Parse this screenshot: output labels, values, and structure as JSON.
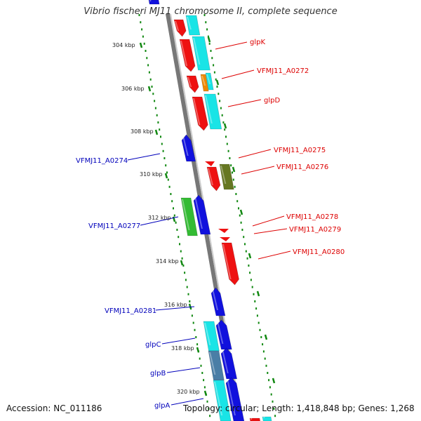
{
  "title": "Vibrio fischeri MJ11 chromosome II, complete sequence",
  "footer": {
    "accession": "Accession: NC_011186",
    "stats": "Topology: circular; Length: 1,418,848 bp; Genes: 1,268"
  },
  "colors": {
    "red": "#ee1111",
    "cyan": "#19e4e6",
    "blue": "#1111dd",
    "green": "#33bb33",
    "olive": "#667722",
    "orange": "#ee8800",
    "steel": "#4a7ea6",
    "backbone": "#777777",
    "tick": "#118811",
    "label_forward": "#dd0000",
    "label_reverse": "#0000bb"
  },
  "ticks": [
    "304 kbp",
    "306 kbp",
    "308 kbp",
    "310 kbp",
    "312 kbp",
    "314 kbp",
    "316 kbp",
    "318 kbp",
    "320 kbp"
  ],
  "gene_labels": [
    {
      "text": "glpK",
      "strand": "forward"
    },
    {
      "text": "VFMJ11_A0272",
      "strand": "forward"
    },
    {
      "text": "glpD",
      "strand": "forward"
    },
    {
      "text": "VFMJ11_A0275",
      "strand": "forward"
    },
    {
      "text": "VFMJ11_A0276",
      "strand": "forward"
    },
    {
      "text": "VFMJ11_A0278",
      "strand": "forward"
    },
    {
      "text": "VFMJ11_A0279",
      "strand": "forward"
    },
    {
      "text": "VFMJ11_A0280",
      "strand": "forward"
    },
    {
      "text": "VFMJ11_A0274",
      "strand": "reverse"
    },
    {
      "text": "VFMJ11_A0277",
      "strand": "reverse"
    },
    {
      "text": "VFMJ11_A0281",
      "strand": "reverse"
    },
    {
      "text": "glpC",
      "strand": "reverse"
    },
    {
      "text": "glpB",
      "strand": "reverse"
    },
    {
      "text": "glpA",
      "strand": "reverse"
    }
  ]
}
